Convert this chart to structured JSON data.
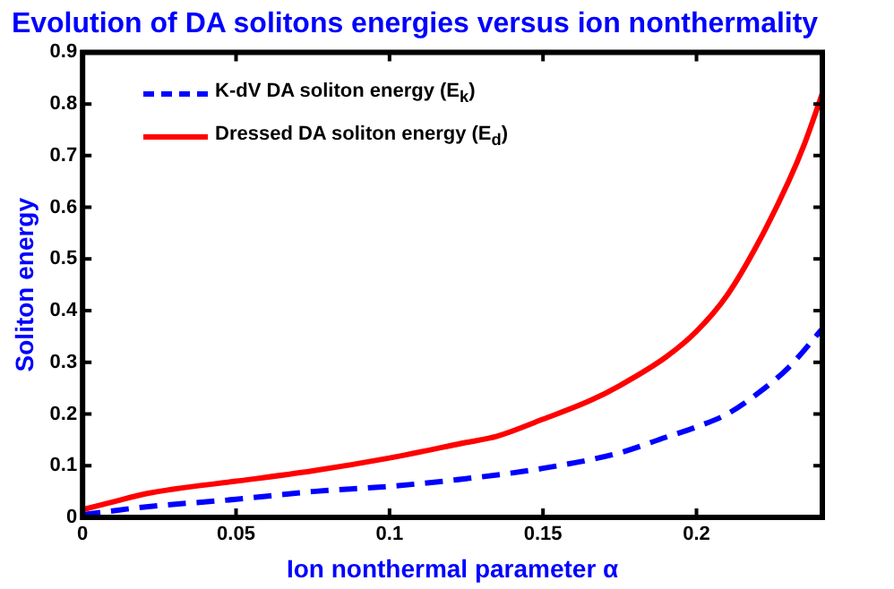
{
  "chart_data": {
    "type": "line",
    "title": "Evolution of DA solitons energies versus ion nonthermality",
    "xlabel": "Ion nonthermal parameter α",
    "ylabel": "Soliton energy",
    "xlim": [
      0,
      0.241
    ],
    "xticks": [
      0,
      0.05,
      0.1,
      0.15,
      0.2
    ],
    "ylim": [
      0,
      0.9
    ],
    "yticks": [
      0,
      0.1,
      0.2,
      0.3,
      0.4,
      0.5,
      0.6,
      0.7,
      0.8,
      0.9
    ],
    "grid": false,
    "legend": "top left",
    "marker": "none",
    "series": [
      {
        "name": "K-dV DA soliton energy (E$_{k}$)",
        "color": "#0000ff",
        "line_style": "dashed",
        "x": [
          0,
          0.02,
          0.05,
          0.075,
          0.1,
          0.125,
          0.15,
          0.175,
          0.19,
          0.2,
          0.21,
          0.22,
          0.23,
          0.241
        ],
        "values": [
          0.005,
          0.02,
          0.035,
          0.05,
          0.06,
          0.075,
          0.095,
          0.125,
          0.155,
          0.175,
          0.2,
          0.24,
          0.29,
          0.365
        ]
      },
      {
        "name": "Dressed DA soliton energy (E$_{d}$)",
        "color": "#ff0000",
        "line_style": "solid",
        "x": [
          0,
          0.01,
          0.02,
          0.03,
          0.05,
          0.075,
          0.1,
          0.125,
          0.135,
          0.15,
          0.165,
          0.175,
          0.19,
          0.2,
          0.21,
          0.22,
          0.23,
          0.235,
          0.241
        ],
        "values": [
          0.015,
          0.03,
          0.045,
          0.055,
          0.07,
          0.09,
          0.115,
          0.145,
          0.157,
          0.19,
          0.225,
          0.255,
          0.31,
          0.36,
          0.43,
          0.53,
          0.65,
          0.72,
          0.82
        ]
      }
    ]
  }
}
